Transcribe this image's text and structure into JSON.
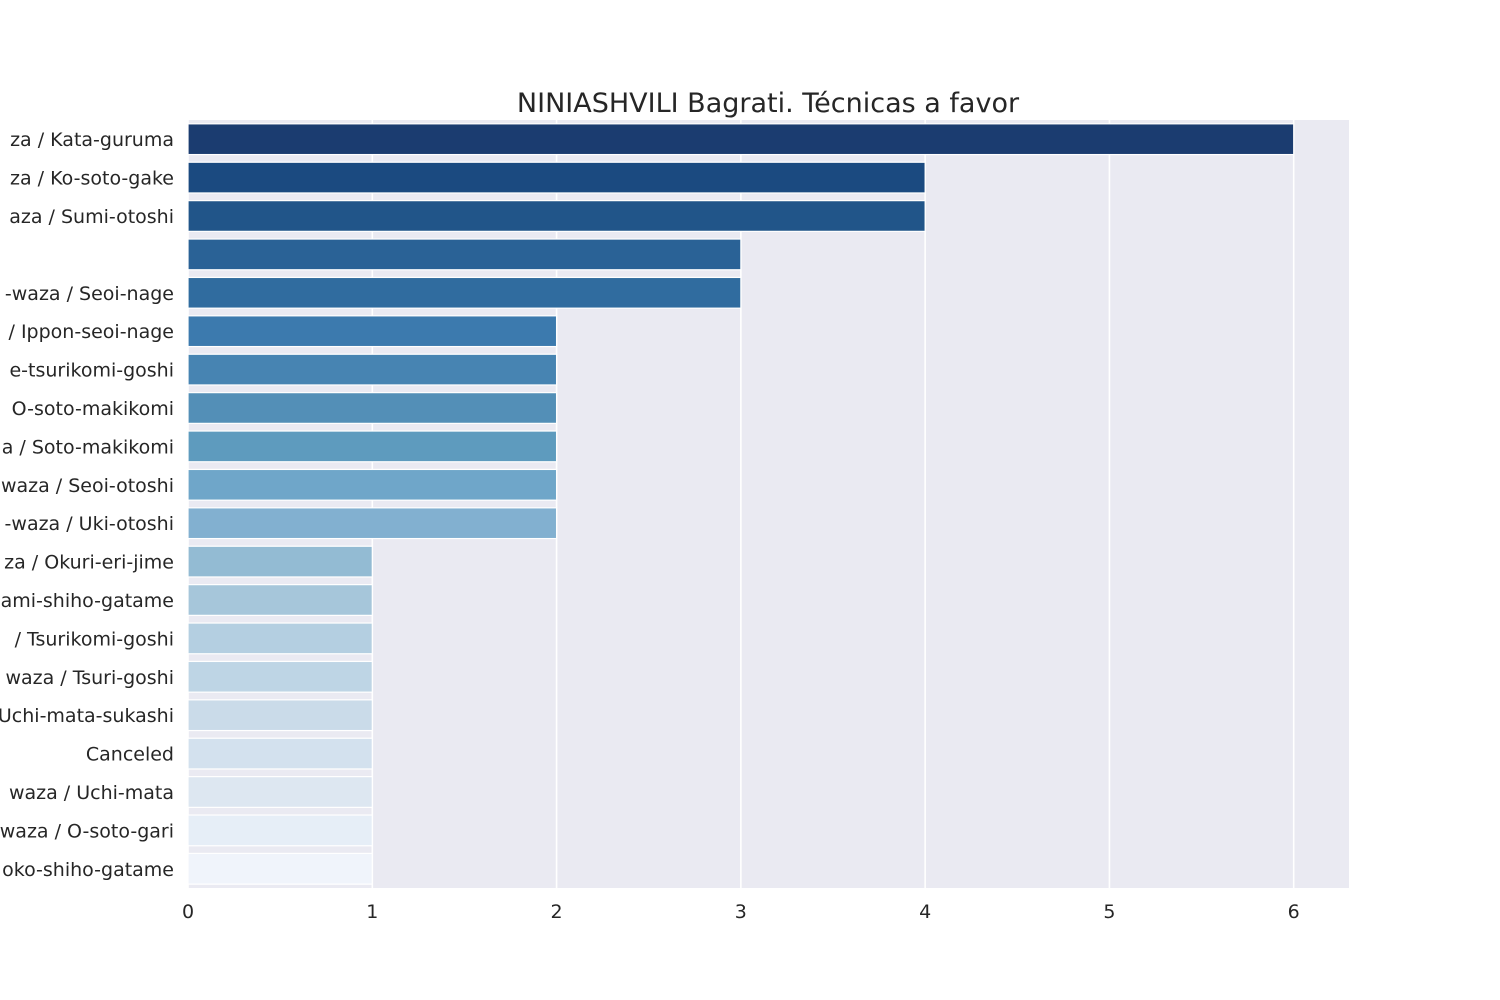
{
  "chart_data": {
    "type": "bar",
    "orientation": "horizontal",
    "title": "NINIASHVILI Bagrati. Técnicas a favor",
    "xlabel": "",
    "ylabel": "",
    "xlim": [
      0,
      6.3
    ],
    "x_ticks": [
      0,
      1,
      2,
      3,
      4,
      5,
      6
    ],
    "grid": true,
    "palette": "Blues_r",
    "categories": [
      "za / Kata-guruma",
      "za / Ko-soto-gake",
      "aza / Sumi-otoshi",
      "",
      "-waza / Seoi-nage",
      "/ Ippon-seoi-nage",
      "e-tsurikomi-goshi",
      "O-soto-makikomi",
      "a / Soto-makikomi",
      "waza / Seoi-otoshi",
      "-waza / Uki-otoshi",
      "za / Okuri-eri-jime",
      "ami-shiho-gatame",
      "/ Tsurikomi-goshi",
      "waza / Tsuri-goshi",
      "Uchi-mata-sukashi",
      "Canceled",
      "waza / Uchi-mata",
      "waza / O-soto-gari",
      "oko-shiho-gatame"
    ],
    "values": [
      6,
      4,
      4,
      3,
      3,
      2,
      2,
      2,
      2,
      2,
      2,
      1,
      1,
      1,
      1,
      1,
      1,
      1,
      1,
      1
    ],
    "colors": [
      "#1b3c70",
      "#1b4a80",
      "#215589",
      "#2a6296",
      "#306c9f",
      "#3c7aae",
      "#4784b2",
      "#538fb7",
      "#5e9bbe",
      "#6fa6c9",
      "#82b0d0",
      "#93bbd3",
      "#a6c6da",
      "#b4cfe1",
      "#bed5e5",
      "#cadbe9",
      "#d3e1ee",
      "#dde7f1",
      "#e6eef7",
      "#f0f4fb"
    ],
    "background_color": "#eaeaf2",
    "grid_color": "#ffffff"
  }
}
